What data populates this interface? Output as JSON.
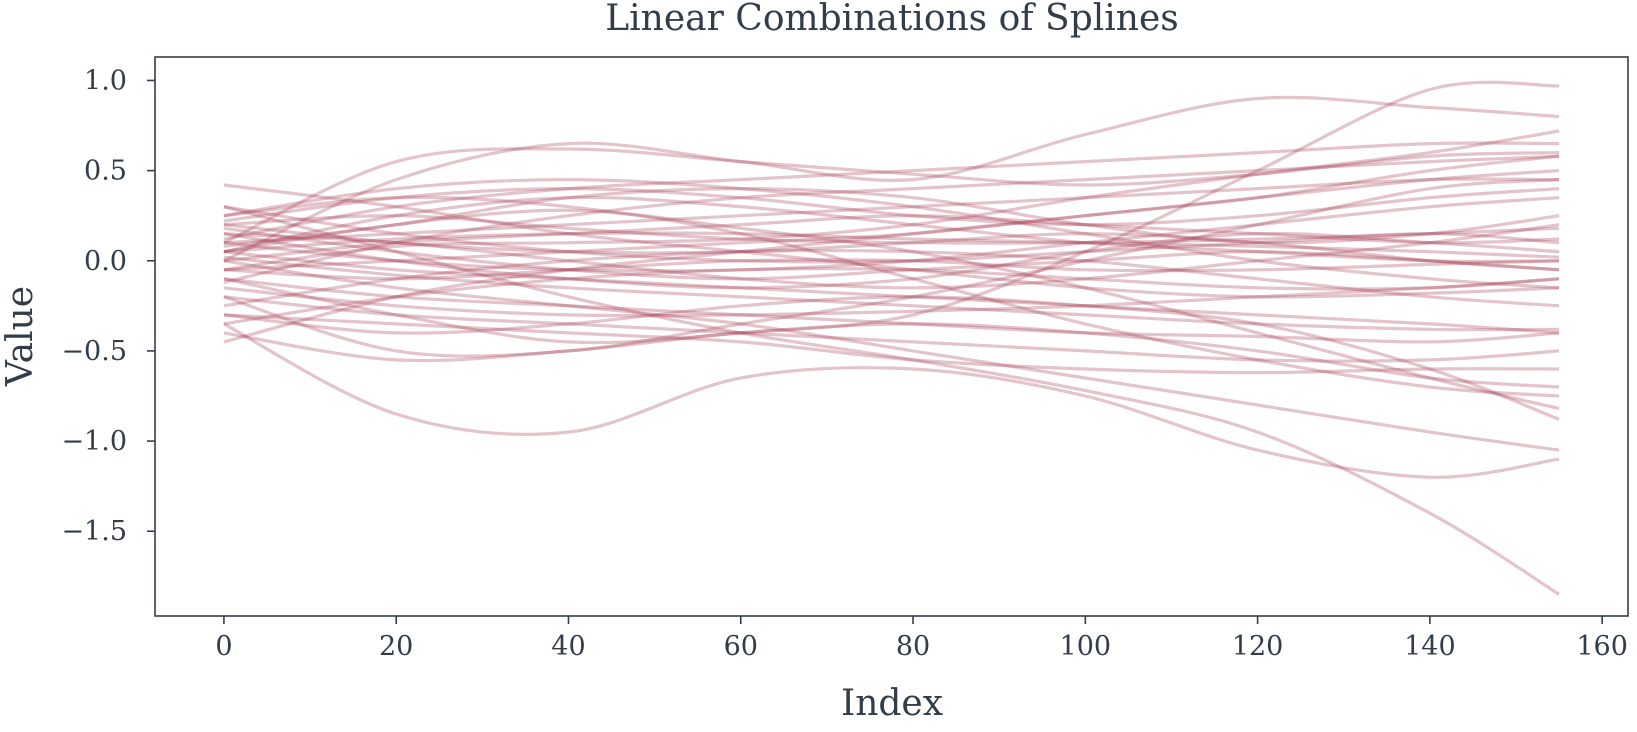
{
  "chart_data": {
    "type": "line",
    "title": "Linear Combinations of Splines",
    "xlabel": "Index",
    "ylabel": "Value",
    "xlim": [
      -8,
      163
    ],
    "ylim": [
      -1.97,
      1.13
    ],
    "x_ticks": [
      0,
      20,
      40,
      60,
      80,
      100,
      120,
      140,
      160
    ],
    "y_ticks": [
      1.0,
      0.5,
      0.0,
      -0.5,
      -1.0,
      -1.5
    ],
    "x_tick_labels": [
      "0",
      "20",
      "40",
      "60",
      "80",
      "100",
      "120",
      "140",
      "160"
    ],
    "y_tick_labels": [
      "1.0",
      "0.5",
      "0.0",
      "−0.5",
      "−1.0",
      "−1.5"
    ],
    "grid": false,
    "legend": "none",
    "line_color": "#a63c52",
    "line_opacity": 0.3,
    "x_knots": [
      0,
      20,
      40,
      60,
      80,
      100,
      120,
      140,
      155
    ],
    "series": [
      {
        "values": [
          0.05,
          0.2,
          0.28,
          0.18,
          0.05,
          -0.15,
          -0.4,
          -0.65,
          -0.82
        ]
      },
      {
        "values": [
          0.3,
          0.05,
          -0.2,
          -0.4,
          -0.55,
          -0.72,
          -0.95,
          -1.4,
          -1.85
        ]
      },
      {
        "values": [
          0.1,
          0.55,
          0.62,
          0.55,
          0.48,
          0.42,
          0.48,
          0.58,
          0.6
        ]
      },
      {
        "values": [
          0.0,
          0.45,
          0.65,
          0.55,
          0.45,
          0.7,
          0.9,
          0.85,
          0.8
        ]
      },
      {
        "values": [
          -0.1,
          -0.3,
          -0.45,
          -0.4,
          -0.3,
          0.05,
          0.5,
          0.95,
          0.97
        ]
      },
      {
        "values": [
          0.42,
          0.3,
          0.15,
          0.05,
          -0.05,
          -0.15,
          -0.2,
          -0.18,
          -0.15
        ]
      },
      {
        "values": [
          -0.35,
          -0.85,
          -0.95,
          -0.65,
          -0.6,
          -0.75,
          -1.05,
          -1.2,
          -1.1
        ]
      },
      {
        "values": [
          -0.45,
          -0.2,
          -0.05,
          0.05,
          0.15,
          0.25,
          0.35,
          0.5,
          0.58
        ]
      },
      {
        "values": [
          0.2,
          0.25,
          0.18,
          0.12,
          0.1,
          0.1,
          0.12,
          0.15,
          0.18
        ]
      },
      {
        "values": [
          -0.2,
          -0.5,
          -0.5,
          -0.35,
          -0.2,
          0.0,
          0.2,
          0.4,
          0.45
        ]
      },
      {
        "values": [
          0.15,
          0.0,
          -0.1,
          -0.15,
          -0.1,
          0.05,
          0.15,
          0.1,
          0.05
        ]
      },
      {
        "values": [
          0.25,
          0.35,
          0.3,
          0.15,
          -0.1,
          -0.35,
          -0.55,
          -0.7,
          -0.75
        ]
      },
      {
        "values": [
          -0.05,
          0.08,
          0.1,
          0.12,
          0.2,
          0.35,
          0.48,
          0.6,
          0.72
        ]
      },
      {
        "values": [
          0.05,
          -0.05,
          -0.1,
          -0.15,
          -0.2,
          -0.25,
          -0.3,
          -0.35,
          -0.4
        ]
      },
      {
        "values": [
          -0.3,
          -0.4,
          -0.35,
          -0.25,
          -0.2,
          -0.25,
          -0.35,
          -0.6,
          -0.88
        ]
      },
      {
        "values": [
          0.1,
          0.15,
          0.2,
          0.25,
          0.3,
          0.35,
          0.4,
          0.45,
          0.45
        ]
      },
      {
        "values": [
          -0.15,
          -0.25,
          -0.3,
          -0.3,
          -0.28,
          -0.25,
          -0.2,
          -0.15,
          -0.1
        ]
      },
      {
        "values": [
          0.2,
          0.1,
          0.05,
          0.05,
          0.1,
          0.15,
          0.1,
          0.0,
          -0.05
        ]
      },
      {
        "values": [
          0.0,
          -0.15,
          -0.25,
          -0.35,
          -0.5,
          -0.65,
          -0.8,
          -0.95,
          -1.05
        ]
      },
      {
        "values": [
          0.12,
          0.3,
          0.4,
          0.45,
          0.5,
          0.55,
          0.6,
          0.65,
          0.65
        ]
      },
      {
        "values": [
          -0.25,
          -0.1,
          0.0,
          0.05,
          0.05,
          0.0,
          -0.1,
          -0.2,
          -0.25
        ]
      },
      {
        "values": [
          0.08,
          0.2,
          0.35,
          0.4,
          0.35,
          0.2,
          0.1,
          0.15,
          0.25
        ]
      },
      {
        "values": [
          -0.4,
          -0.55,
          -0.5,
          -0.4,
          -0.35,
          -0.4,
          -0.5,
          -0.65,
          -0.7
        ]
      },
      {
        "values": [
          0.3,
          0.15,
          0.05,
          0.0,
          0.0,
          0.05,
          0.1,
          0.15,
          0.1
        ]
      },
      {
        "values": [
          0.0,
          0.1,
          0.15,
          0.2,
          0.25,
          0.2,
          0.15,
          0.1,
          0.12
        ]
      },
      {
        "values": [
          -0.1,
          -0.2,
          -0.25,
          -0.3,
          -0.35,
          -0.4,
          -0.42,
          -0.45,
          -0.4
        ]
      },
      {
        "values": [
          0.18,
          0.05,
          -0.05,
          -0.1,
          -0.05,
          0.0,
          0.05,
          0.0,
          -0.05
        ]
      },
      {
        "values": [
          -0.3,
          -0.35,
          -0.4,
          -0.45,
          -0.55,
          -0.6,
          -0.62,
          -0.6,
          -0.6
        ]
      },
      {
        "values": [
          0.05,
          0.25,
          0.35,
          0.3,
          0.2,
          0.1,
          0.05,
          0.0,
          0.0
        ]
      },
      {
        "values": [
          -0.05,
          0.0,
          0.05,
          0.1,
          0.15,
          0.25,
          0.35,
          0.45,
          0.5
        ]
      },
      {
        "values": [
          0.15,
          0.1,
          0.0,
          -0.1,
          -0.15,
          -0.1,
          0.0,
          0.1,
          0.2
        ]
      },
      {
        "values": [
          0.22,
          0.35,
          0.4,
          0.35,
          0.25,
          0.2,
          0.25,
          0.35,
          0.4
        ]
      },
      {
        "values": [
          -0.2,
          -0.3,
          -0.35,
          -0.4,
          -0.45,
          -0.5,
          -0.55,
          -0.55,
          -0.5
        ]
      },
      {
        "values": [
          0.02,
          -0.08,
          -0.15,
          -0.2,
          -0.25,
          -0.3,
          -0.35,
          -0.38,
          -0.38
        ]
      },
      {
        "values": [
          0.1,
          0.0,
          -0.05,
          -0.05,
          0.0,
          0.1,
          0.2,
          0.3,
          0.35
        ]
      },
      {
        "values": [
          -0.12,
          0.1,
          0.25,
          0.35,
          0.4,
          0.45,
          0.5,
          0.55,
          0.58
        ]
      },
      {
        "values": [
          0.25,
          0.4,
          0.45,
          0.4,
          0.3,
          0.15,
          0.0,
          -0.1,
          -0.15
        ]
      },
      {
        "values": [
          -0.35,
          -0.2,
          -0.1,
          -0.05,
          -0.05,
          -0.1,
          -0.15,
          -0.15,
          -0.1
        ]
      },
      {
        "values": [
          0.05,
          0.12,
          0.15,
          0.15,
          0.12,
          0.1,
          0.08,
          0.05,
          0.02
        ]
      },
      {
        "values": [
          -0.05,
          -0.1,
          -0.05,
          0.0,
          0.0,
          -0.05,
          -0.05,
          -0.02,
          0.0
        ]
      }
    ]
  }
}
